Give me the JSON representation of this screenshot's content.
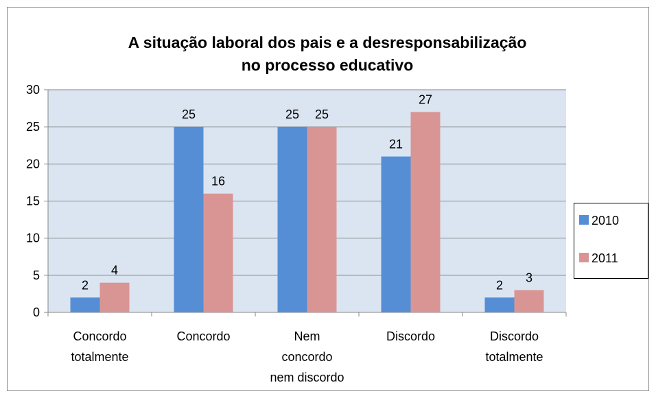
{
  "chart_data": {
    "type": "bar",
    "title": "A situação laboral dos pais e a desresponsabilização\nno processo educativo",
    "categories": [
      "Concordo\ntotalmente",
      "Concordo",
      "Nem\nconcordo\nnem discordo",
      "Discordo",
      "Discordo\ntotalmente"
    ],
    "series": [
      {
        "name": "2010",
        "color": "#558ed5",
        "values": [
          2,
          25,
          25,
          21,
          2
        ]
      },
      {
        "name": "2011",
        "color": "#d99594",
        "values": [
          4,
          16,
          25,
          27,
          3
        ]
      }
    ],
    "ylim": [
      0,
      30
    ],
    "yticks": [
      0,
      5,
      10,
      15,
      20,
      25,
      30
    ],
    "grid": true,
    "legend": "right"
  }
}
